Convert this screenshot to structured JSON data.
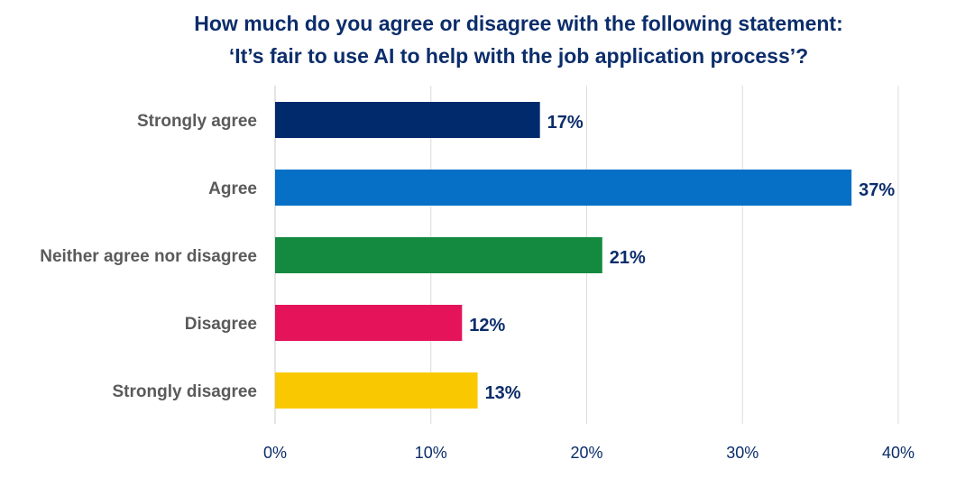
{
  "chart_data": {
    "type": "bar",
    "orientation": "horizontal",
    "title_lines": [
      "How much do you agree or disagree with the following statement:",
      "‘It’s fair to use AI to help with the job application process’?"
    ],
    "categories": [
      "Strongly agree",
      "Agree",
      "Neither agree nor disagree",
      "Disagree",
      "Strongly disagree"
    ],
    "values": [
      17,
      37,
      21,
      12,
      13
    ],
    "value_labels": [
      "17%",
      "37%",
      "21%",
      "12%",
      "13%"
    ],
    "colors": [
      "#002a6c",
      "#0570c6",
      "#138a40",
      "#e5145a",
      "#f9c800"
    ],
    "xlim": [
      0,
      40
    ],
    "xticks": [
      0,
      10,
      20,
      30,
      40
    ],
    "xtick_labels": [
      "0%",
      "10%",
      "20%",
      "30%",
      "40%"
    ],
    "grid": true,
    "xlabel": "",
    "ylabel": ""
  }
}
